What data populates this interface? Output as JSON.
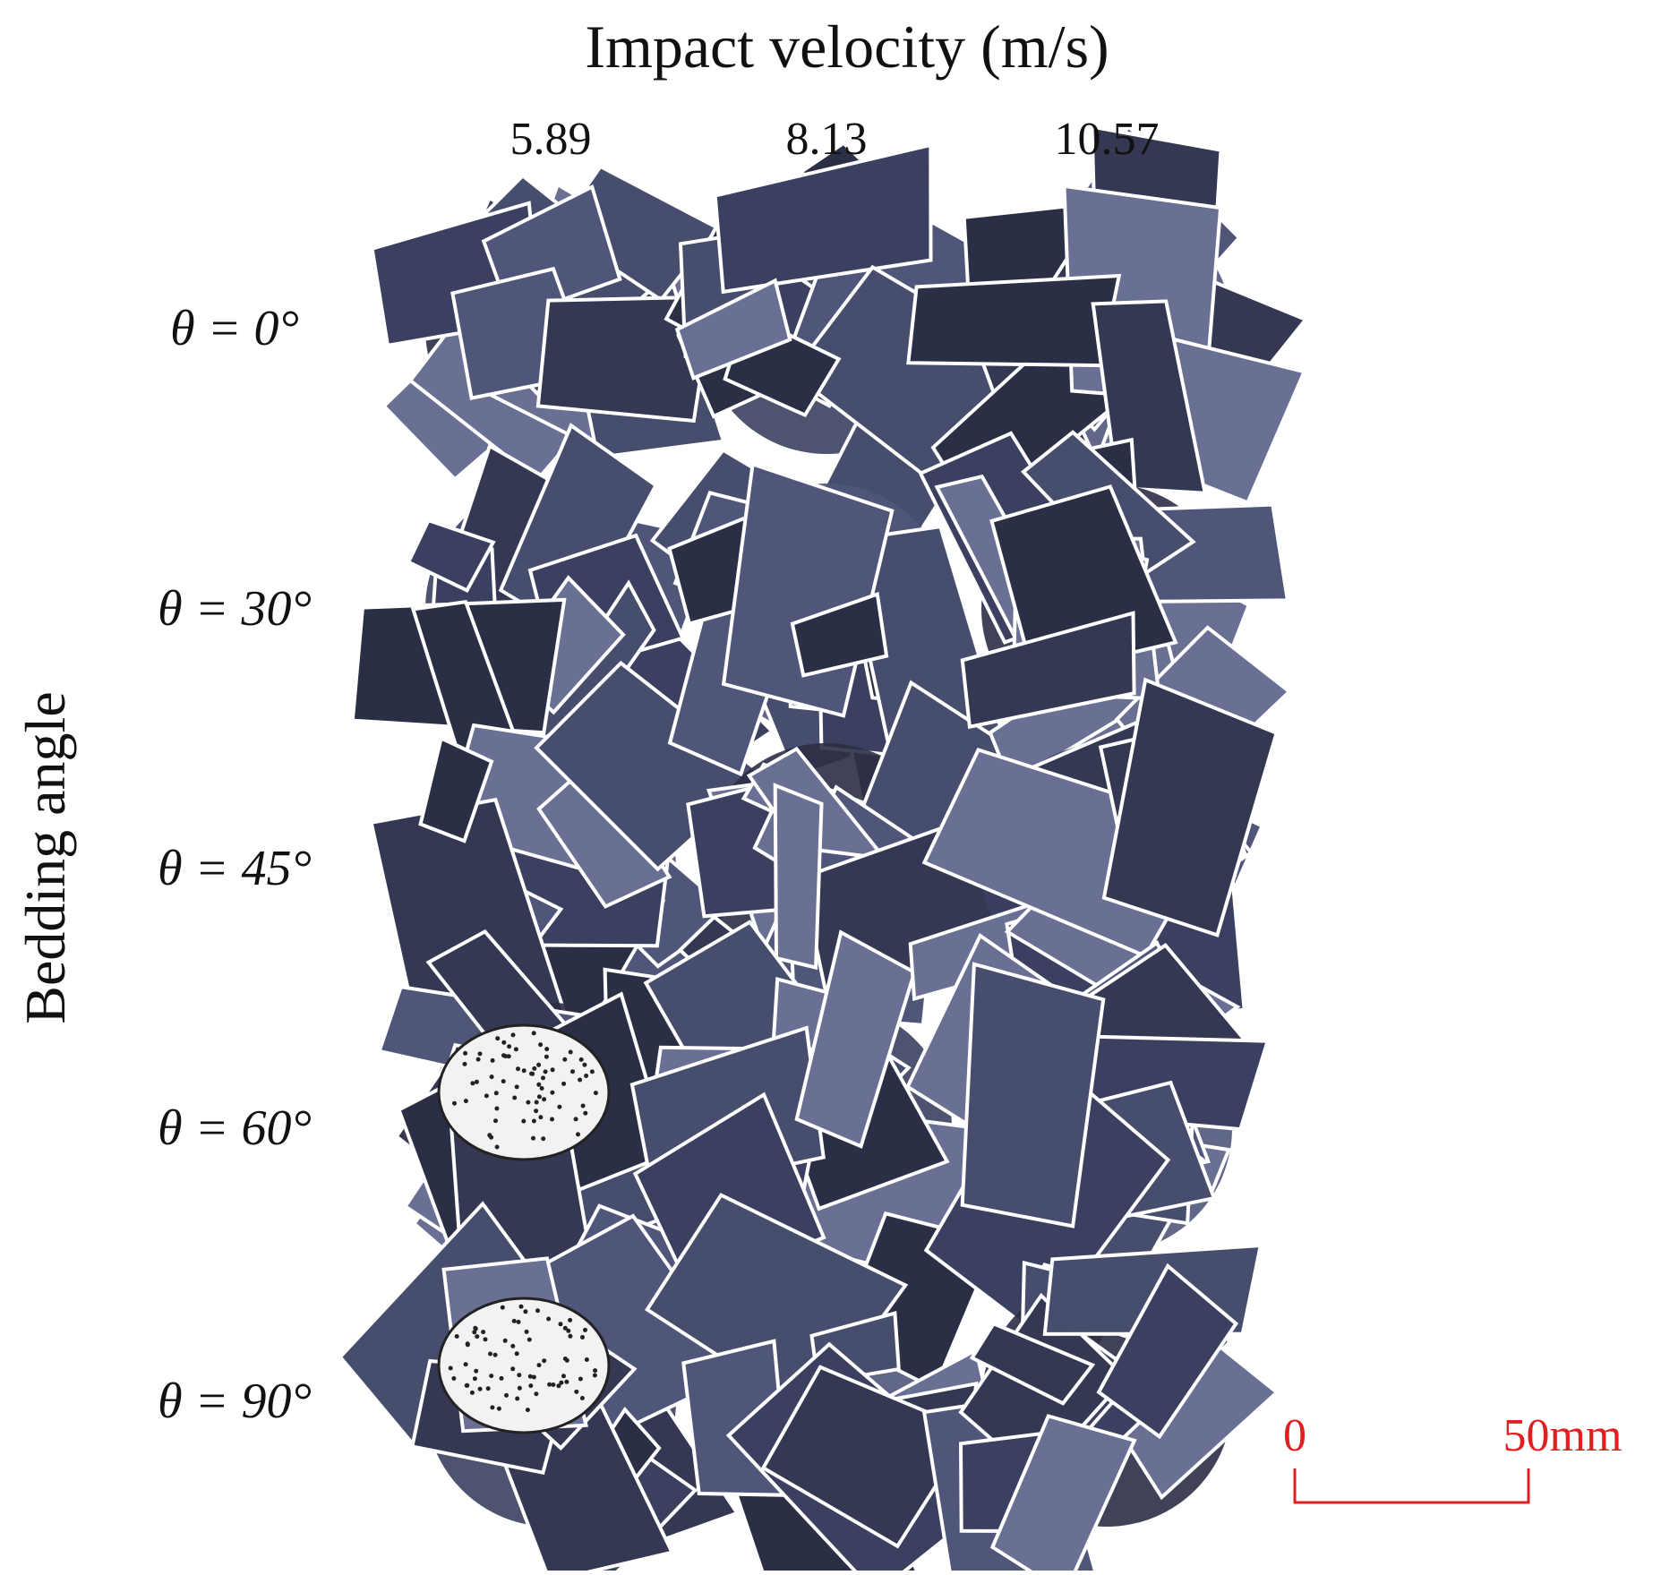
{
  "header": {
    "title": "Impact velocity (m/s)"
  },
  "columns": [
    "5.89",
    "8.13",
    "10.57"
  ],
  "side_label": "Bedding angle",
  "rows": [
    "θ = 0°",
    "θ = 30°",
    "θ = 45°",
    "θ = 60°",
    "θ = 90°"
  ],
  "scale_bar": {
    "start": "0",
    "end": "50mm"
  }
}
